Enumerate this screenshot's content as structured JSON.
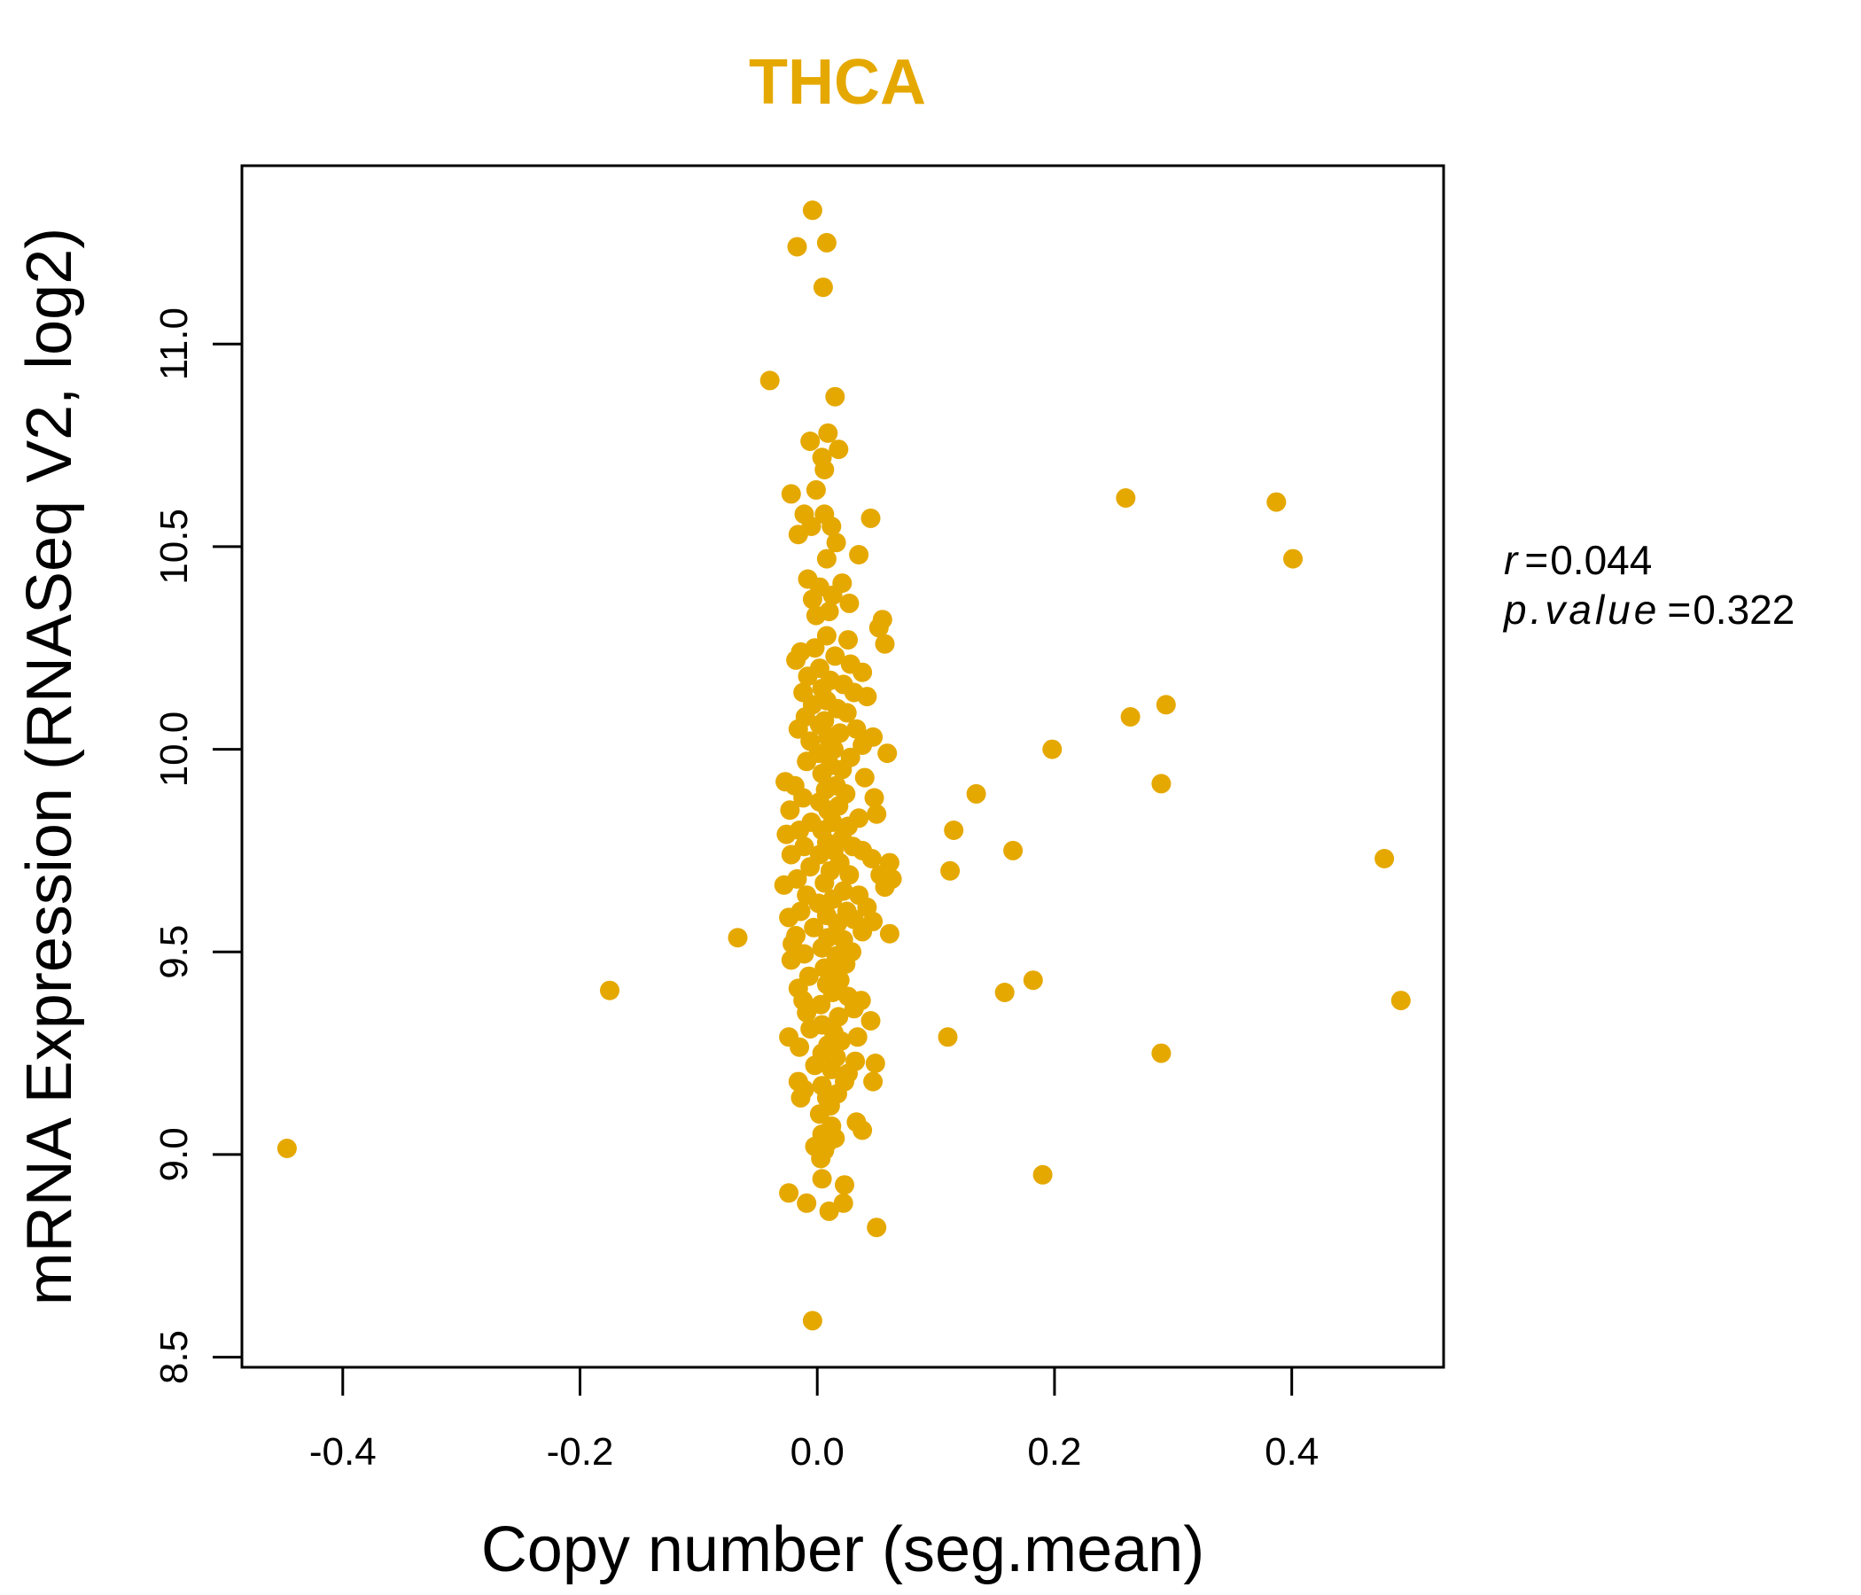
{
  "chart_data": {
    "type": "scatter",
    "title": "THCA",
    "xlabel": "Copy number (seg.mean)",
    "ylabel": "mRNA Expression (RNASeq V2, log2)",
    "xlim": [
      -0.485,
      0.528
    ],
    "ylim": [
      8.475,
      11.44
    ],
    "xticks": [
      -0.4,
      -0.2,
      0.0,
      0.2,
      0.4
    ],
    "xtick_labels": [
      "-0.4",
      "-0.2",
      "0.0",
      "0.2",
      "0.4"
    ],
    "yticks": [
      8.5,
      9.0,
      9.5,
      10.0,
      10.5,
      11.0
    ],
    "ytick_labels": [
      "8.5",
      "9.0",
      "9.5",
      "10.0",
      "10.5",
      "11.0"
    ],
    "grid": false,
    "legend": "none",
    "color": "#e5a800",
    "annotations": {
      "r_label": "r",
      "r_value": "0.044",
      "p_label": "p.value",
      "p_value": "0.322"
    },
    "points": [
      [
        -0.447,
        9.015
      ],
      [
        -0.175,
        9.405
      ],
      [
        -0.067,
        9.535
      ],
      [
        -0.04,
        10.91
      ],
      [
        -0.004,
        11.33
      ],
      [
        -0.017,
        11.24
      ],
      [
        0.008,
        11.25
      ],
      [
        0.005,
        11.14
      ],
      [
        0.015,
        10.87
      ],
      [
        0.009,
        10.78
      ],
      [
        -0.006,
        10.76
      ],
      [
        0.018,
        10.74
      ],
      [
        0.004,
        10.72
      ],
      [
        0.006,
        10.69
      ],
      [
        -0.022,
        10.63
      ],
      [
        -0.001,
        10.64
      ],
      [
        -0.011,
        10.58
      ],
      [
        0.006,
        10.58
      ],
      [
        0.045,
        10.57
      ],
      [
        -0.005,
        10.55
      ],
      [
        0.012,
        10.55
      ],
      [
        -0.016,
        10.53
      ],
      [
        0.016,
        10.51
      ],
      [
        0.035,
        10.48
      ],
      [
        0.008,
        10.47
      ],
      [
        -0.008,
        10.42
      ],
      [
        0.002,
        10.4
      ],
      [
        0.021,
        10.41
      ],
      [
        -0.004,
        10.37
      ],
      [
        0.013,
        10.38
      ],
      [
        0.027,
        10.36
      ],
      [
        0.01,
        10.34
      ],
      [
        -0.001,
        10.33
      ],
      [
        0.055,
        10.32
      ],
      [
        0.052,
        10.3
      ],
      [
        0.008,
        10.28
      ],
      [
        0.026,
        10.27
      ],
      [
        -0.002,
        10.25
      ],
      [
        0.057,
        10.26
      ],
      [
        -0.014,
        10.24
      ],
      [
        0.015,
        10.23
      ],
      [
        -0.018,
        10.22
      ],
      [
        0.028,
        10.21
      ],
      [
        0.002,
        10.2
      ],
      [
        0.038,
        10.19
      ],
      [
        -0.008,
        10.18
      ],
      [
        0.011,
        10.17
      ],
      [
        0.022,
        10.16
      ],
      [
        0.004,
        10.15
      ],
      [
        -0.012,
        10.14
      ],
      [
        0.031,
        10.14
      ],
      [
        0.042,
        10.13
      ],
      [
        0.008,
        10.12
      ],
      [
        -0.004,
        10.11
      ],
      [
        0.017,
        10.1
      ],
      [
        0.025,
        10.09
      ],
      [
        -0.01,
        10.08
      ],
      [
        0.006,
        10.07
      ],
      [
        0.002,
        10.06
      ],
      [
        0.033,
        10.05
      ],
      [
        -0.016,
        10.05
      ],
      [
        0.019,
        10.04
      ],
      [
        0.047,
        10.03
      ],
      [
        0.009,
        10.03
      ],
      [
        -0.006,
        10.02
      ],
      [
        0.038,
        10.01
      ],
      [
        0.014,
        10.0
      ],
      [
        0.001,
        9.99
      ],
      [
        0.059,
        9.99
      ],
      [
        0.028,
        9.98
      ],
      [
        -0.009,
        9.97
      ],
      [
        0.011,
        9.96
      ],
      [
        0.021,
        9.95
      ],
      [
        0.004,
        9.94
      ],
      [
        0.04,
        9.93
      ],
      [
        -0.027,
        9.92
      ],
      [
        -0.019,
        9.91
      ],
      [
        0.016,
        9.91
      ],
      [
        0.007,
        9.9
      ],
      [
        0.024,
        9.89
      ],
      [
        -0.012,
        9.88
      ],
      [
        0.048,
        9.88
      ],
      [
        0.002,
        9.87
      ],
      [
        -0.023,
        9.85
      ],
      [
        0.018,
        9.86
      ],
      [
        0.009,
        9.85
      ],
      [
        0.05,
        9.84
      ],
      [
        0.035,
        9.83
      ],
      [
        -0.005,
        9.82
      ],
      [
        0.013,
        9.82
      ],
      [
        0.026,
        9.81
      ],
      [
        -0.015,
        9.8
      ],
      [
        0.004,
        9.8
      ],
      [
        -0.026,
        9.79
      ],
      [
        0.021,
        9.78
      ],
      [
        0.008,
        9.77
      ],
      [
        -0.011,
        9.76
      ],
      [
        0.03,
        9.76
      ],
      [
        0.014,
        9.75
      ],
      [
        0.038,
        9.75
      ],
      [
        -0.022,
        9.74
      ],
      [
        0.002,
        9.74
      ],
      [
        0.046,
        9.73
      ],
      [
        0.061,
        9.72
      ],
      [
        0.019,
        9.72
      ],
      [
        -0.006,
        9.71
      ],
      [
        0.011,
        9.7
      ],
      [
        0.053,
        9.69
      ],
      [
        0.027,
        9.69
      ],
      [
        -0.017,
        9.68
      ],
      [
        0.063,
        9.68
      ],
      [
        0.006,
        9.67
      ],
      [
        -0.028,
        9.665
      ],
      [
        0.057,
        9.66
      ],
      [
        0.022,
        9.65
      ],
      [
        -0.009,
        9.64
      ],
      [
        0.035,
        9.64
      ],
      [
        0.013,
        9.63
      ],
      [
        0.001,
        9.62
      ],
      [
        0.042,
        9.61
      ],
      [
        -0.014,
        9.6
      ],
      [
        0.025,
        9.6
      ],
      [
        0.008,
        9.59
      ],
      [
        -0.024,
        9.585
      ],
      [
        0.031,
        9.58
      ],
      [
        0.047,
        9.575
      ],
      [
        0.017,
        9.57
      ],
      [
        -0.003,
        9.56
      ],
      [
        0.038,
        9.55
      ],
      [
        0.061,
        9.545
      ],
      [
        -0.018,
        9.54
      ],
      [
        0.009,
        9.535
      ],
      [
        0.022,
        9.53
      ],
      [
        -0.021,
        9.52
      ],
      [
        0.004,
        9.51
      ],
      [
        0.029,
        9.5
      ],
      [
        -0.011,
        9.495
      ],
      [
        0.016,
        9.49
      ],
      [
        -0.022,
        9.48
      ],
      [
        0.024,
        9.47
      ],
      [
        0.006,
        9.46
      ],
      [
        0.011,
        9.45
      ],
      [
        -0.007,
        9.44
      ],
      [
        0.019,
        9.43
      ],
      [
        0.008,
        9.42
      ],
      [
        -0.016,
        9.41
      ],
      [
        0.013,
        9.4
      ],
      [
        0.026,
        9.39
      ],
      [
        -0.012,
        9.38
      ],
      [
        0.037,
        9.38
      ],
      [
        0.003,
        9.37
      ],
      [
        0.031,
        9.36
      ],
      [
        -0.009,
        9.35
      ],
      [
        0.018,
        9.34
      ],
      [
        0.045,
        9.33
      ],
      [
        0.004,
        9.32
      ],
      [
        -0.006,
        9.31
      ],
      [
        0.014,
        9.3
      ],
      [
        -0.024,
        9.29
      ],
      [
        0.034,
        9.29
      ],
      [
        0.02,
        9.28
      ],
      [
        0.009,
        9.27
      ],
      [
        -0.015,
        9.265
      ],
      [
        0.004,
        9.25
      ],
      [
        0.016,
        9.24
      ],
      [
        0.032,
        9.23
      ],
      [
        -0.002,
        9.22
      ],
      [
        0.049,
        9.225
      ],
      [
        0.012,
        9.21
      ],
      [
        0.026,
        9.2
      ],
      [
        -0.016,
        9.18
      ],
      [
        0.023,
        9.18
      ],
      [
        0.047,
        9.18
      ],
      [
        0.004,
        9.17
      ],
      [
        -0.011,
        9.16
      ],
      [
        0.017,
        9.15
      ],
      [
        0.008,
        9.14
      ],
      [
        -0.014,
        9.14
      ],
      [
        0.011,
        9.12
      ],
      [
        0.002,
        9.1
      ],
      [
        0.033,
        9.08
      ],
      [
        0.012,
        9.07
      ],
      [
        0.038,
        9.06
      ],
      [
        0.004,
        9.05
      ],
      [
        0.015,
        9.04
      ],
      [
        0.009,
        9.03
      ],
      [
        -0.002,
        9.02
      ],
      [
        0.006,
        9.01
      ],
      [
        0.003,
        8.99
      ],
      [
        0.004,
        8.94
      ],
      [
        0.023,
        8.925
      ],
      [
        -0.024,
        8.905
      ],
      [
        -0.009,
        8.88
      ],
      [
        0.022,
        8.88
      ],
      [
        0.01,
        8.86
      ],
      [
        0.05,
        8.82
      ],
      [
        -0.004,
        8.59
      ],
      [
        0.11,
        9.29
      ],
      [
        0.112,
        9.7
      ],
      [
        0.115,
        9.8
      ],
      [
        0.134,
        9.89
      ],
      [
        0.158,
        9.4
      ],
      [
        0.165,
        9.75
      ],
      [
        0.182,
        9.43
      ],
      [
        0.19,
        8.95
      ],
      [
        0.198,
        10.0
      ],
      [
        0.26,
        10.62
      ],
      [
        0.264,
        10.08
      ],
      [
        0.29,
        9.25
      ],
      [
        0.29,
        9.915
      ],
      [
        0.294,
        10.11
      ],
      [
        0.387,
        10.61
      ],
      [
        0.401,
        10.47
      ],
      [
        0.478,
        9.73
      ],
      [
        0.492,
        9.38
      ]
    ]
  }
}
